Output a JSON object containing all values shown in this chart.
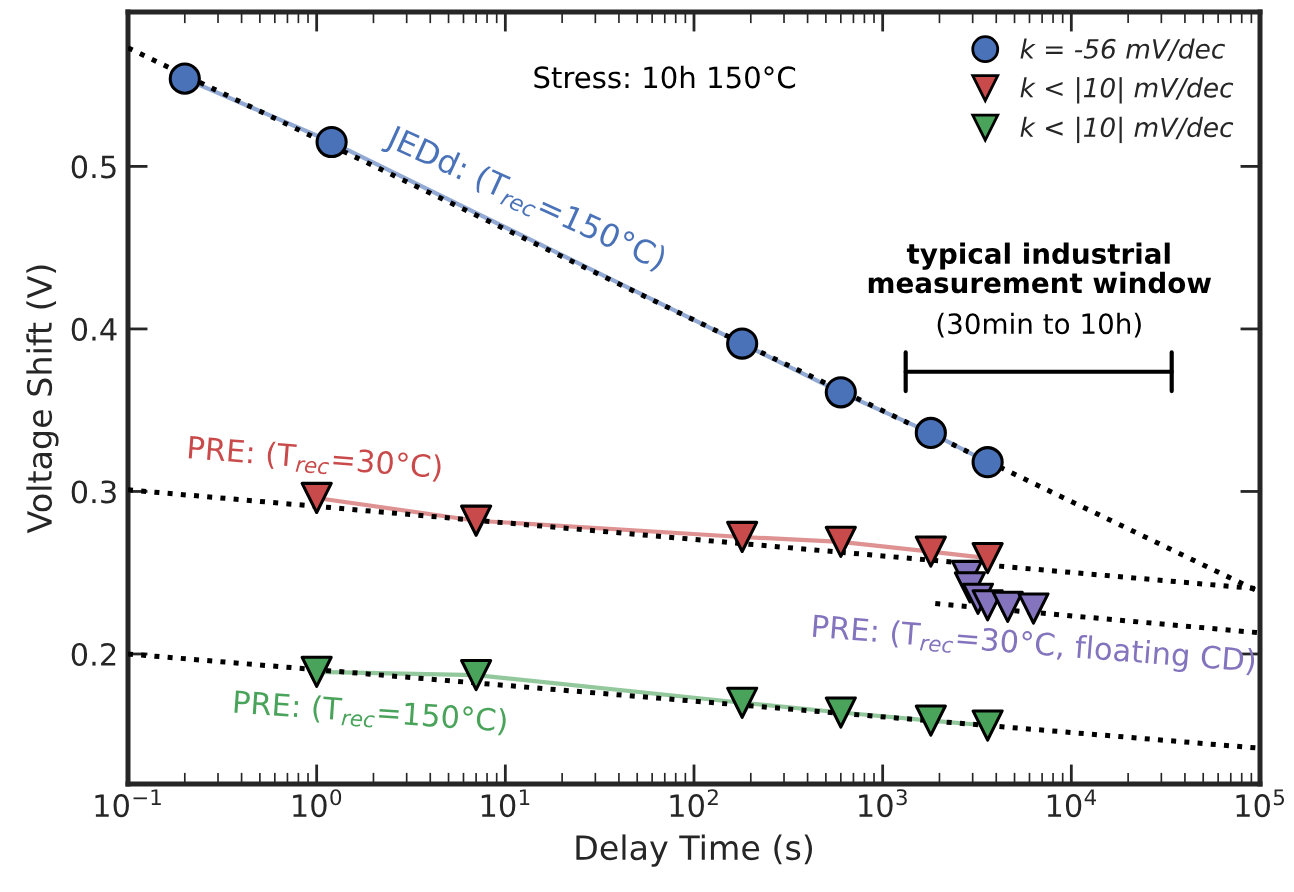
{
  "chart_data": {
    "type": "line",
    "xlabel": "Delay Time (s)",
    "ylabel": "Voltage Shift (V)",
    "log": "x",
    "xlim": [
      0.1,
      100000
    ],
    "ylim": [
      0.12,
      0.595
    ],
    "xticks": [
      {
        "value": 0.1,
        "label": "10$^{−1}$"
      },
      {
        "value": 1,
        "label": "10$^{0}$"
      },
      {
        "value": 10,
        "label": "10$^{1}$"
      },
      {
        "value": 100,
        "label": "10$^{2}$"
      },
      {
        "value": 1000,
        "label": "10$^{3}$"
      },
      {
        "value": 10000,
        "label": "10$^{4}$"
      },
      {
        "value": 100000,
        "label": "10$^{5}$"
      }
    ],
    "yticks": [
      0.2,
      0.3,
      0.4,
      0.5
    ],
    "grid": false,
    "legend": "top right",
    "series": [
      {
        "name": "k = -56 mV/dec",
        "marker": "circle",
        "color": "#4a72b8",
        "x": [
          0.2,
          1.2,
          180,
          600,
          1800,
          3600
        ],
        "values": [
          0.554,
          0.515,
          0.391,
          0.361,
          0.336,
          0.318
        ]
      },
      {
        "name": "k < |10| mV/dec",
        "marker": "triangle",
        "color": "#c94a4a",
        "x": [
          1,
          7,
          180,
          600,
          1800,
          3600
        ],
        "values": [
          0.296,
          0.282,
          0.272,
          0.269,
          0.263,
          0.259
        ]
      },
      {
        "name": "k < |10| mV/dec",
        "marker": "triangle",
        "color": "#4aa35a",
        "x": [
          1,
          7,
          180,
          600,
          1800,
          3600
        ],
        "values": [
          0.189,
          0.187,
          0.17,
          0.164,
          0.159,
          0.156
        ]
      },
      {
        "type": "scatter",
        "marker": "triangle",
        "color": "#8474bd",
        "x": [
          2800,
          2900,
          3200,
          3600,
          4600,
          6300
        ],
        "values": [
          0.248,
          0.241,
          0.234,
          0.23,
          0.229,
          0.228
        ]
      },
      {
        "marker": "none",
        "line_style": "dotted",
        "color": "#000000",
        "x": [
          0.1,
          100000
        ],
        "values": [
          0.573,
          0.238
        ]
      },
      {
        "marker": "none",
        "line_style": "dotted",
        "color": "#000000",
        "x": [
          0.1,
          100000
        ],
        "values": [
          0.301,
          0.24
        ]
      },
      {
        "marker": "none",
        "line_style": "dotted",
        "color": "#000000",
        "x": [
          1900,
          100000
        ],
        "values": [
          0.231,
          0.213
        ]
      },
      {
        "marker": "none",
        "line_style": "dotted",
        "color": "#000000",
        "x": [
          0.1,
          100000
        ],
        "values": [
          0.2,
          0.142
        ]
      }
    ],
    "annotations": [
      "Stress: 10h 150°C",
      "JEDd: (T$_{rec}$=150°C)",
      "PRE: (T$_{rec}$=30°C)",
      "PRE: (T$_{rec}$=30°C, floating CD)",
      "PRE: (T$_{rec}$=150°C)",
      "typical industrial\nmeasurement window",
      "(30min to 10h)"
    ]
  }
}
